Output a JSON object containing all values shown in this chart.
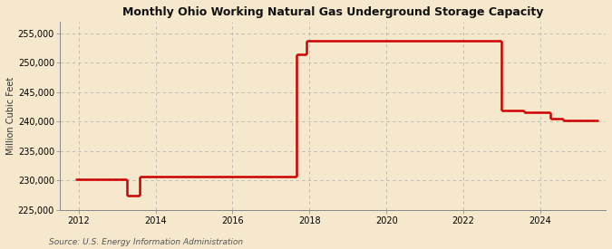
{
  "title": "Monthly Ohio Working Natural Gas Underground Storage Capacity",
  "ylabel": "Million Cubic Feet",
  "source": "Source: U.S. Energy Information Administration",
  "background_color": "#f5e8cc",
  "line_color": "#cc0000",
  "line_width": 1.8,
  "ylim": [
    225000,
    257000
  ],
  "yticks": [
    225000,
    230000,
    235000,
    240000,
    245000,
    250000,
    255000
  ],
  "xlim": [
    2011.5,
    2025.7
  ],
  "xticks": [
    2012,
    2014,
    2016,
    2018,
    2020,
    2022,
    2024
  ],
  "segments": [
    {
      "x_start": 2011.917,
      "x_end": 2013.25,
      "y": 230200
    },
    {
      "x_start": 2013.25,
      "x_end": 2013.583,
      "y": 227500
    },
    {
      "x_start": 2013.583,
      "x_end": 2017.667,
      "y": 230700
    },
    {
      "x_start": 2017.667,
      "x_end": 2017.917,
      "y": 251500
    },
    {
      "x_start": 2017.917,
      "x_end": 2023.0,
      "y": 253700
    },
    {
      "x_start": 2023.0,
      "x_end": 2023.583,
      "y": 241900
    },
    {
      "x_start": 2023.583,
      "x_end": 2024.25,
      "y": 241600
    },
    {
      "x_start": 2024.25,
      "x_end": 2024.583,
      "y": 240500
    },
    {
      "x_start": 2024.583,
      "x_end": 2025.5,
      "y": 240200
    }
  ]
}
